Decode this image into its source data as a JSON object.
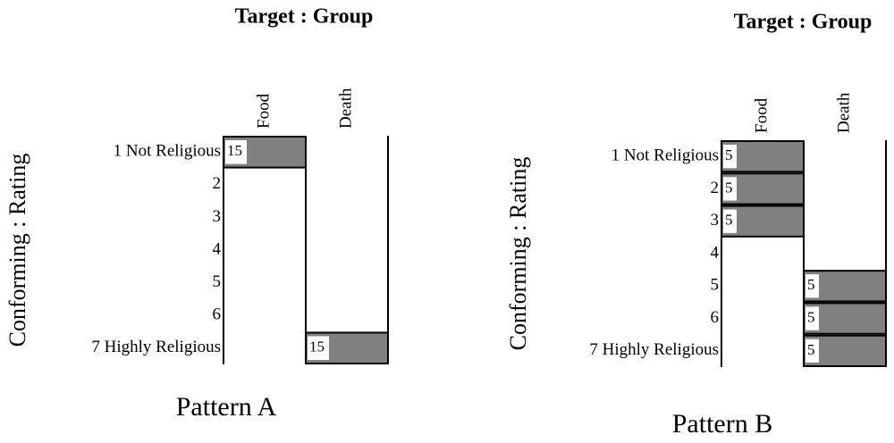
{
  "panels": [
    {
      "title": "Target : Group",
      "y_label": "Conforming : Rating",
      "columns": [
        "Food",
        "Death"
      ],
      "rows": [
        "1 Not Religious",
        "2",
        "3",
        "4",
        "5",
        "6",
        "7 Highly Religious"
      ],
      "cells": [
        [
          15,
          null
        ],
        [
          null,
          null
        ],
        [
          null,
          null
        ],
        [
          null,
          null
        ],
        [
          null,
          null
        ],
        [
          null,
          null
        ],
        [
          null,
          15
        ]
      ],
      "caption": "Pattern A"
    },
    {
      "title": "Target : Group",
      "y_label": "Conforming : Rating",
      "columns": [
        "Food",
        "Death"
      ],
      "rows": [
        "1 Not Religious",
        "2",
        "3",
        "4",
        "5",
        "6",
        "7 Highly Religious"
      ],
      "cells": [
        [
          5,
          null
        ],
        [
          5,
          null
        ],
        [
          5,
          null
        ],
        [
          null,
          null
        ],
        [
          null,
          5
        ],
        [
          null,
          5
        ],
        [
          null,
          5
        ]
      ],
      "caption": "Pattern B"
    }
  ]
}
